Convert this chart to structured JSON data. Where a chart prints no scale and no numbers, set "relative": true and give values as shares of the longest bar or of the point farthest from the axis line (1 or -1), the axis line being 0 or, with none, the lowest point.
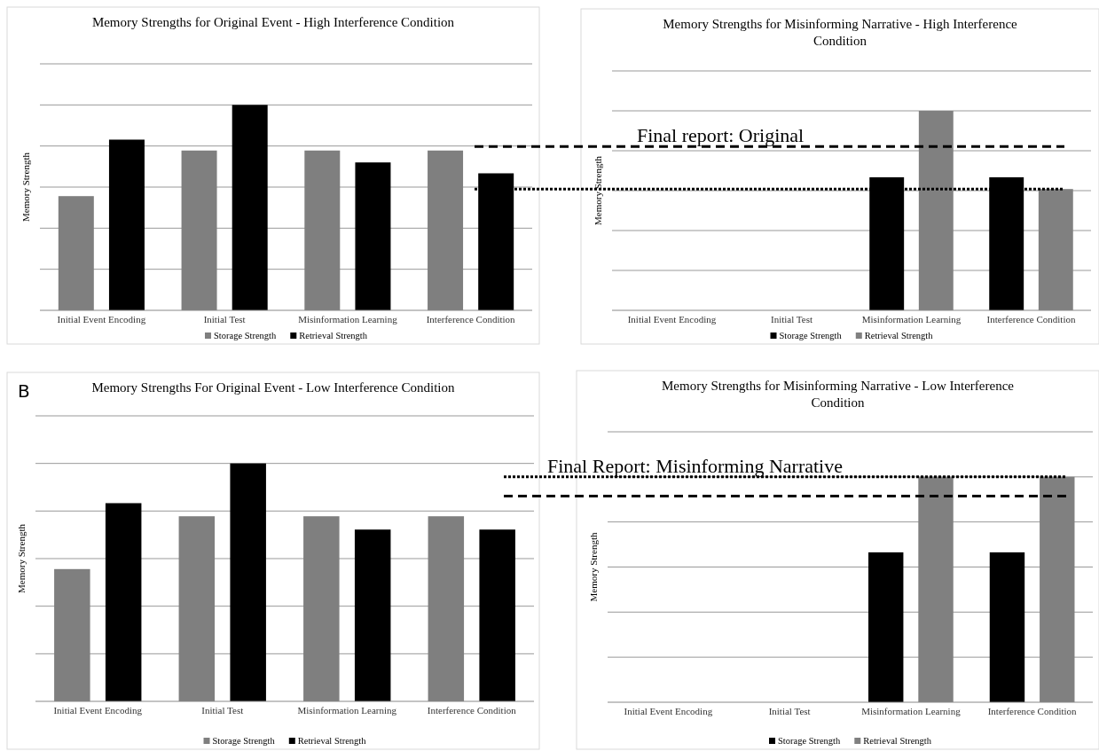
{
  "chart_data": [
    {
      "type": "bar",
      "title": "Memory Strengths for Original Event - High Interference Condition",
      "ylabel": "Memory Strength",
      "relative": true,
      "grid": "y",
      "legend": "bottom",
      "categories": [
        "Initial Event Encoding",
        "Initial Test",
        "Misinformation Learning",
        "Interference Condition"
      ],
      "series": [
        {
          "name": "Storage Strength",
          "color": "#7f7f7f",
          "values": [
            0.556,
            0.778,
            0.778,
            0.778
          ]
        },
        {
          "name": "Retrieval Strength",
          "color": "#000000",
          "values": [
            0.831,
            1,
            0.72,
            0.667
          ]
        }
      ]
    },
    {
      "type": "bar",
      "title": "Memory Strengths for Misinforming Narrative - High Interference Condition",
      "ylabel": "Memory Strength",
      "relative": true,
      "grid": "y",
      "legend": "bottom",
      "categories": [
        "Initial Event Encoding",
        "Initial Test",
        "Misinformation Learning",
        "Interference Condition"
      ],
      "series": [
        {
          "name": "Storage Strength",
          "color": "#000000",
          "values": [
            null,
            null,
            0.667,
            0.667
          ]
        },
        {
          "name": "Retrieval Strength",
          "color": "#808080",
          "values": [
            null,
            null,
            1,
            0.608
          ]
        }
      ],
      "ref_lines": [
        {
          "axis": "y",
          "value": 0.821,
          "label": "Final report: Original",
          "line_style": "dashed",
          "color": "#000000"
        },
        {
          "axis": "y",
          "value": 0.608,
          "line_style": "dotted",
          "color": "#000000"
        }
      ]
    },
    {
      "type": "bar",
      "title": "Memory Strengths For Original Event - Low Interference Condition",
      "ylabel": "Memory Strength",
      "relative": true,
      "grid": "y",
      "legend": "bottom",
      "annotations": [
        "B"
      ],
      "categories": [
        "Initial Event Encoding",
        "Initial Test",
        "Misinformation Learning",
        "Interference Condition"
      ],
      "series": [
        {
          "name": "Storage Strength",
          "color": "#7f7f7f",
          "values": [
            0.556,
            0.778,
            0.778,
            0.778
          ]
        },
        {
          "name": "Retrieval Strength",
          "color": "#000000",
          "values": [
            0.833,
            1,
            0.722,
            0.722
          ]
        }
      ]
    },
    {
      "type": "bar",
      "title": "Memory Strengths for Misinforming  Narrative - Low Interference Condition",
      "ylabel": "Memory Strength",
      "relative": true,
      "grid": "y",
      "legend": "bottom",
      "categories": [
        "Initial Event Encoding",
        "Initial Test",
        "Misinformation Learning",
        "Interference Condition"
      ],
      "series": [
        {
          "name": "Storage Strength",
          "color": "#000000",
          "values": [
            null,
            null,
            0.665,
            0.665
          ]
        },
        {
          "name": "Retrieval Strength",
          "color": "#808080",
          "values": [
            null,
            null,
            1,
            1
          ]
        }
      ],
      "ref_lines": [
        {
          "axis": "y",
          "value": 1,
          "label": "Final Report: Misinforming Narrative",
          "line_style": "dotted",
          "color": "#000000"
        },
        {
          "axis": "y",
          "value": 0.915,
          "line_style": "dashed",
          "color": "#000000"
        }
      ]
    }
  ]
}
